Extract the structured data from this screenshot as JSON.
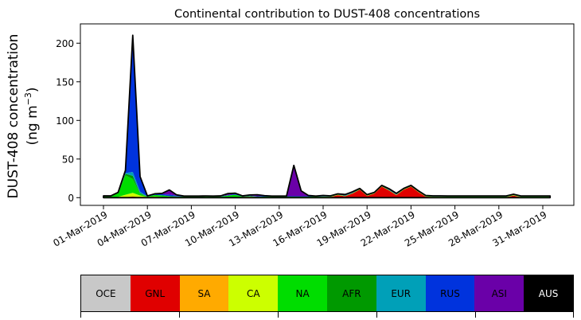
{
  "chart_data": {
    "type": "area",
    "title": "Continental contribution to DUST-408 concentrations",
    "ylabel_line1": "DUST-408 concentration",
    "ylabel_line2_pre": "(ng m",
    "ylabel_line2_sup": "−3",
    "ylabel_line2_post": ")",
    "ylim": [
      -10,
      225
    ],
    "yticks": [
      0,
      50,
      100,
      150,
      200
    ],
    "x_start": "2019-03-01",
    "xticks": [
      "01-Mar-2019",
      "04-Mar-2019",
      "07-Mar-2019",
      "10-Mar-2019",
      "13-Mar-2019",
      "16-Mar-2019",
      "19-Mar-2019",
      "22-Mar-2019",
      "25-Mar-2019",
      "28-Mar-2019",
      "31-Mar-2019"
    ],
    "x_dates": [
      "2019-03-01",
      "2019-03-01T12:00",
      "2019-03-02",
      "2019-03-02T12:00",
      "2019-03-03",
      "2019-03-03T12:00",
      "2019-03-04",
      "2019-03-04T12:00",
      "2019-03-05",
      "2019-03-05T12:00",
      "2019-03-06",
      "2019-03-06T12:00",
      "2019-03-07",
      "2019-03-07T12:00",
      "2019-03-08",
      "2019-03-08T12:00",
      "2019-03-09",
      "2019-03-09T12:00",
      "2019-03-10",
      "2019-03-10T12:00",
      "2019-03-11",
      "2019-03-11T12:00",
      "2019-03-12",
      "2019-03-12T12:00",
      "2019-03-13",
      "2019-03-13T12:00",
      "2019-03-14",
      "2019-03-14T12:00",
      "2019-03-15",
      "2019-03-15T12:00",
      "2019-03-16",
      "2019-03-16T12:00",
      "2019-03-17",
      "2019-03-17T12:00",
      "2019-03-18",
      "2019-03-18T12:00",
      "2019-03-19",
      "2019-03-19T12:00",
      "2019-03-20",
      "2019-03-20T12:00",
      "2019-03-21",
      "2019-03-21T12:00",
      "2019-03-22",
      "2019-03-22T12:00",
      "2019-03-23",
      "2019-03-23T12:00",
      "2019-03-24",
      "2019-03-24T12:00",
      "2019-03-25",
      "2019-03-25T12:00",
      "2019-03-26",
      "2019-03-26T12:00",
      "2019-03-27",
      "2019-03-27T12:00",
      "2019-03-28",
      "2019-03-28T12:00",
      "2019-03-29",
      "2019-03-29T12:00",
      "2019-03-30",
      "2019-03-30T12:00",
      "2019-03-31",
      "2019-03-31T12:00"
    ],
    "series": [
      {
        "name": "OCE",
        "color": "#c8c8c8",
        "values": [
          0.3,
          0.3,
          0.3,
          0.3,
          0.3,
          0.3,
          0.3,
          0.3,
          0.3,
          0.3,
          0.3,
          0.3,
          0.3,
          0.3,
          0.3,
          0.3,
          0.3,
          0.3,
          0.3,
          0.3,
          0.3,
          0.3,
          0.3,
          0.3,
          0.3,
          0.3,
          0.3,
          0.3,
          0.3,
          0.3,
          0.3,
          0.3,
          0.3,
          0.3,
          0.3,
          0.3,
          0.3,
          0.3,
          0.3,
          0.3,
          0.3,
          0.3,
          0.3,
          0.3,
          0.3,
          0.3,
          0.3,
          0.3,
          0.3,
          0.3,
          0.3,
          0.3,
          0.3,
          0.3,
          0.3,
          0.3,
          0.3,
          0.3,
          0.3,
          0.3,
          0.3,
          0.3
        ]
      },
      {
        "name": "GNL",
        "color": "#e00000",
        "values": [
          0.2,
          0.2,
          0.2,
          0.5,
          1,
          0.5,
          0.2,
          0.2,
          0.2,
          0.2,
          0.3,
          0.2,
          0.2,
          0.2,
          0.3,
          0.2,
          0.2,
          0.2,
          0.2,
          0.2,
          0.2,
          0.2,
          0.2,
          0.2,
          0.2,
          0.2,
          0.2,
          0.2,
          0.2,
          0.2,
          0.5,
          0.5,
          3,
          1.5,
          5,
          10,
          2,
          5,
          14,
          9,
          3,
          10,
          14,
          7,
          1,
          0.5,
          0.5,
          0.3,
          0.3,
          0.3,
          0.3,
          0.3,
          0.3,
          0.3,
          0.3,
          0.3,
          2.5,
          0.3,
          0.3,
          0.3,
          0.3,
          0.3
        ]
      },
      {
        "name": "SA",
        "color": "#ffaa00",
        "values": [
          0,
          0,
          0,
          0,
          0,
          0,
          0,
          0,
          0,
          0,
          0,
          0,
          0,
          0,
          0,
          0,
          0,
          0,
          0,
          0,
          0,
          0,
          0,
          0,
          0,
          0,
          0,
          0,
          0,
          0,
          0,
          0,
          0,
          0,
          0,
          0,
          0,
          0,
          0,
          0,
          0,
          0,
          0,
          0,
          0,
          0,
          0,
          0,
          0,
          0,
          0,
          0,
          0,
          0,
          0,
          0,
          0,
          0,
          0,
          0,
          0,
          0
        ]
      },
      {
        "name": "CA",
        "color": "#ccff00",
        "values": [
          0.3,
          0.3,
          0.5,
          3,
          5,
          2,
          0.5,
          1,
          0.5,
          0.5,
          0.5,
          0.3,
          0.3,
          0.3,
          0.3,
          0.3,
          0.5,
          0.3,
          0.3,
          0.5,
          1,
          0.3,
          0.3,
          0.3,
          0.3,
          0.3,
          0.3,
          0.3,
          0.3,
          0.3,
          0.3,
          0.3,
          0.3,
          0.3,
          0.3,
          0.3,
          0.3,
          0.3,
          0.3,
          0.3,
          0.3,
          0.3,
          0.3,
          0.3,
          0.3,
          0.3,
          0.3,
          0.3,
          0.3,
          0.3,
          0.3,
          0.3,
          0.3,
          0.3,
          0.3,
          0.3,
          0.3,
          0.3,
          0.3,
          0.3,
          0.3,
          0.3
        ]
      },
      {
        "name": "NA",
        "color": "#00dd00",
        "values": [
          1,
          1,
          5,
          25,
          18,
          2,
          0.5,
          2,
          2,
          1,
          0.5,
          0.5,
          0.5,
          0.5,
          0.5,
          0.5,
          0.5,
          2,
          3,
          0.5,
          0.5,
          0.5,
          0.5,
          0.5,
          0.5,
          0.5,
          0.5,
          0.5,
          0.5,
          0.5,
          0.5,
          0.5,
          0.5,
          0.5,
          0.5,
          0.5,
          0.5,
          0.5,
          0.5,
          0.5,
          0.5,
          0.5,
          0.5,
          0.5,
          0.5,
          0.5,
          0.5,
          0.5,
          0.5,
          0.5,
          0.5,
          0.5,
          0.5,
          0.5,
          0.5,
          0.5,
          0.5,
          0.5,
          0.5,
          0.5,
          0.5,
          0.5
        ]
      },
      {
        "name": "AFR",
        "color": "#009900",
        "values": [
          0,
          0,
          0,
          2,
          4,
          1,
          0,
          0,
          0,
          0,
          0,
          0,
          0,
          0,
          0,
          0,
          0,
          0,
          0,
          0,
          0,
          0,
          0,
          0,
          0,
          0,
          0,
          0,
          0,
          0,
          0,
          0,
          0,
          0,
          0,
          0,
          0,
          0,
          0,
          0,
          0,
          0,
          0,
          0,
          0,
          0,
          0,
          0,
          0,
          0,
          0,
          0,
          0,
          0,
          0,
          0,
          0,
          0,
          0,
          0,
          0,
          0
        ]
      },
      {
        "name": "EUR",
        "color": "#00a0b8",
        "values": [
          0,
          0,
          0,
          1,
          5,
          2,
          0,
          0,
          0,
          0,
          0,
          0,
          0,
          0,
          0,
          0,
          0,
          0,
          0,
          0,
          0,
          0,
          0,
          0,
          0,
          0,
          0,
          0,
          0,
          0,
          0,
          0,
          0,
          0,
          0,
          0,
          0,
          0,
          0,
          0,
          0,
          0,
          0,
          0,
          0,
          0,
          0,
          0,
          0,
          0,
          0,
          0,
          0,
          0,
          0,
          0,
          0,
          0,
          0,
          0,
          0,
          0
        ]
      },
      {
        "name": "RUS",
        "color": "#0033dd",
        "values": [
          0.2,
          0.2,
          0.5,
          3,
          175,
          19,
          0.5,
          1,
          1.5,
          2,
          1,
          0.5,
          0.5,
          0.5,
          0.5,
          0.5,
          0.5,
          0.5,
          1,
          0.5,
          0.5,
          0.5,
          1,
          0.5,
          0.5,
          0.5,
          0.5,
          0.5,
          0.5,
          0.5,
          1,
          0.5,
          0.5,
          0.5,
          0.5,
          0.5,
          0.5,
          0.5,
          0.5,
          0.5,
          0.5,
          0.5,
          0.5,
          0.5,
          0.5,
          0.5,
          0.5,
          0.5,
          0.5,
          0.5,
          0.5,
          0.5,
          0.5,
          0.5,
          0.5,
          0.5,
          0.5,
          0.5,
          0.5,
          0.5,
          0.5,
          0.5
        ]
      },
      {
        "name": "ASI",
        "color": "#6a00a8",
        "values": [
          0.3,
          0.3,
          0.3,
          0.5,
          2,
          0.5,
          0.3,
          0.5,
          1,
          6,
          1,
          0.3,
          0.3,
          0.3,
          0.3,
          0.3,
          0.3,
          2,
          1,
          0.3,
          1,
          2,
          0.3,
          0.3,
          0.3,
          0.3,
          40,
          7,
          1,
          0.3,
          0.3,
          0.3,
          0.3,
          1,
          1,
          0.3,
          0.3,
          0.3,
          0.3,
          1,
          1,
          0.3,
          0.3,
          0.3,
          0.3,
          0.3,
          0.3,
          0.3,
          0.3,
          0.3,
          0.3,
          0.3,
          0.3,
          0.3,
          0.3,
          0.3,
          0.3,
          0.3,
          0.3,
          0.3,
          0.3,
          0.3
        ]
      },
      {
        "name": "AUS",
        "color": "#000000",
        "values": [
          0,
          0,
          0,
          0,
          0,
          0,
          0,
          0,
          0,
          0,
          0,
          0,
          0,
          0,
          0,
          0,
          0,
          0,
          0,
          0,
          0,
          0,
          0,
          0,
          0,
          0,
          0,
          0,
          0,
          0,
          0,
          0,
          0,
          0,
          0,
          0,
          0,
          0,
          0,
          0,
          0,
          0,
          0,
          0,
          0,
          0,
          0,
          0,
          0,
          0,
          0,
          0,
          0,
          0,
          0,
          0,
          0,
          0,
          0,
          0,
          0,
          0
        ]
      }
    ],
    "grid": false,
    "legend_placement": "bottom colorbar"
  }
}
